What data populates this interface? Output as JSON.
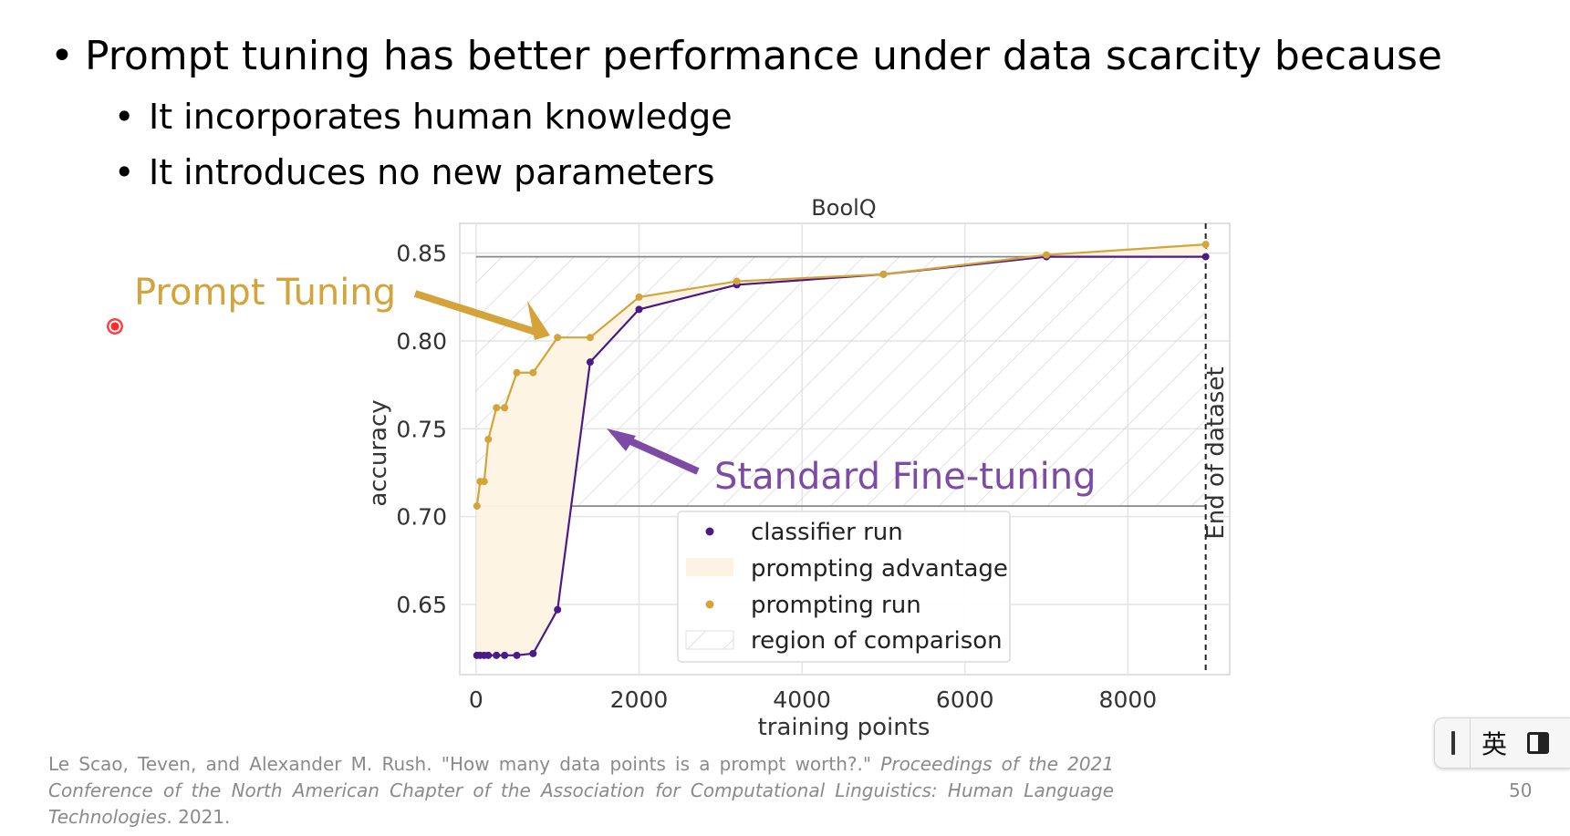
{
  "slide": {
    "bullets": [
      "Prompt tuning has better performance under data scarcity because",
      "It incorporates human knowledge",
      "It introduces no new parameters"
    ],
    "callouts": {
      "prompt_tuning": "Prompt Tuning",
      "standard_fine_tuning": "Standard Fine-tuning"
    },
    "citation": {
      "authors": "Le Scao, Teven, and Alexander M. Rush. \"How many data points is a prompt worth?.\"",
      "venue": "Proceedings of the 2021 Conference of the North American Chapter of the Association for Computational Linguistics: Human Language Technologies",
      "year": ". 2021."
    },
    "page_number": "50"
  },
  "ime": {
    "language": "英"
  },
  "colors": {
    "prompting": "#d4a43a",
    "classifier": "#4b1a86",
    "callout_purple": "#7d4aa5",
    "advantage_fill": "#fdf3e3"
  },
  "chart_data": {
    "type": "line",
    "title": "BoolQ",
    "xlabel": "training points",
    "ylabel": "accuracy",
    "xlim": [
      -200,
      9250
    ],
    "ylim": [
      0.61,
      0.867
    ],
    "x_ticks": [
      "0",
      "2000",
      "4000",
      "6000",
      "8000"
    ],
    "y_ticks": [
      "0.85",
      "0.80",
      "0.75",
      "0.70",
      "0.65"
    ],
    "grid": true,
    "legend_position": "bottom-center",
    "series": [
      {
        "name": "classifier run",
        "x": [
          10,
          50,
          100,
          150,
          250,
          350,
          500,
          700,
          1000,
          1400,
          2000,
          3200,
          5000,
          7000,
          8955
        ],
        "values": [
          0.621,
          0.621,
          0.621,
          0.621,
          0.621,
          0.621,
          0.621,
          0.622,
          0.647,
          0.788,
          0.818,
          0.832,
          0.838,
          0.848,
          0.848
        ]
      },
      {
        "name": "prompting run",
        "x": [
          10,
          50,
          100,
          150,
          250,
          350,
          500,
          700,
          1000,
          1400,
          2000,
          3200,
          5000,
          7000,
          8955
        ],
        "values": [
          0.706,
          0.72,
          0.72,
          0.744,
          0.762,
          0.762,
          0.782,
          0.782,
          0.802,
          0.802,
          0.825,
          0.834,
          0.838,
          0.849,
          0.855
        ]
      }
    ],
    "legend": [
      "classifier run",
      "prompting advantage",
      "prompting run",
      "region of comparison"
    ],
    "region_of_comparison": {
      "y_low": 0.706,
      "y_high": 0.848
    },
    "end_marker": {
      "x": 8955,
      "label": "End of dataset"
    }
  }
}
